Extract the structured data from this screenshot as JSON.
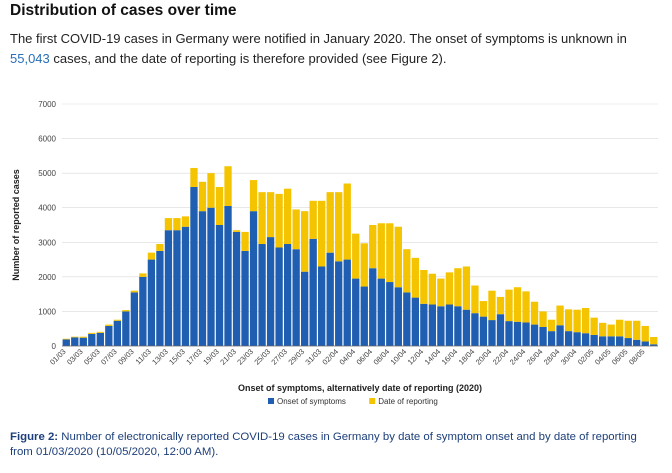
{
  "heading": "Distribution of cases over time",
  "intro": {
    "part1": "The first COVID-19 cases in Germany were notified in January 2020. The onset of symptoms is unknown in ",
    "number": "55,043",
    "part2": " cases, and the date of reporting is therefore provided (see Figure 2)."
  },
  "caption": {
    "lead": "Figure 2:",
    "text": " Number of electronically reported COVID-19 cases in Germany by date of symptom onset and by date of reporting from 01/03/2020 (10/05/2020, 12:00 AM)."
  },
  "chart_data": {
    "type": "bar",
    "stacked": true,
    "xlabel": "Onset of symptoms, alternatively date of reporting (2020)",
    "ylabel": "Number of reported cases",
    "ylim": [
      0,
      7000
    ],
    "yticks": [
      "0",
      "1000",
      "2000",
      "3000",
      "4000",
      "5000",
      "6000",
      "7000"
    ],
    "grid": true,
    "legend_position": "bottom",
    "categories": [
      "01/03",
      "02/03",
      "03/03",
      "04/03",
      "05/03",
      "06/03",
      "07/03",
      "08/03",
      "09/03",
      "10/03",
      "11/03",
      "12/03",
      "13/03",
      "14/03",
      "15/03",
      "16/03",
      "17/03",
      "18/03",
      "19/03",
      "20/03",
      "21/03",
      "22/03",
      "23/03",
      "24/03",
      "25/03",
      "26/03",
      "27/03",
      "28/03",
      "29/03",
      "30/03",
      "31/03",
      "01/04",
      "02/04",
      "03/04",
      "04/04",
      "05/04",
      "06/04",
      "07/04",
      "08/04",
      "09/04",
      "10/04",
      "11/04",
      "12/04",
      "13/04",
      "14/04",
      "15/04",
      "16/04",
      "17/04",
      "18/04",
      "19/04",
      "20/04",
      "21/04",
      "22/04",
      "23/04",
      "24/04",
      "25/04",
      "26/04",
      "27/04",
      "28/04",
      "29/04",
      "30/04",
      "01/05",
      "02/05",
      "03/05",
      "04/05",
      "05/05",
      "06/05",
      "07/05",
      "08/05",
      "09/05"
    ],
    "xtick_labels": [
      "01/03",
      "03/03",
      "05/03",
      "07/03",
      "09/03",
      "11/03",
      "13/03",
      "15/03",
      "17/03",
      "19/03",
      "21/03",
      "23/03",
      "25/03",
      "27/03",
      "29/03",
      "31/03",
      "02/04",
      "04/04",
      "06/04",
      "08/04",
      "10/04",
      "12/04",
      "14/04",
      "16/04",
      "18/04",
      "20/04",
      "22/04",
      "24/04",
      "26/04",
      "28/04",
      "30/04",
      "02/05",
      "04/05",
      "06/05",
      "08/05"
    ],
    "series": [
      {
        "name": "Onset of symptoms",
        "color": "#1f5eb0",
        "values": [
          190,
          250,
          240,
          350,
          380,
          580,
          730,
          1000,
          1550,
          2000,
          2500,
          2750,
          3350,
          3350,
          3450,
          4600,
          3900,
          4000,
          3500,
          4050,
          3300,
          2750,
          3900,
          2950,
          3150,
          2850,
          2950,
          2800,
          2150,
          3100,
          2300,
          2700,
          2450,
          2500,
          1950,
          1720,
          2250,
          1950,
          1850,
          1700,
          1550,
          1400,
          1220,
          1200,
          1150,
          1200,
          1150,
          1050,
          950,
          850,
          750,
          920,
          720,
          700,
          680,
          620,
          550,
          430,
          600,
          430,
          400,
          370,
          320,
          280,
          280,
          280,
          230,
          180,
          130,
          50
        ]
      },
      {
        "name": "Date of reporting",
        "color": "#f5c400",
        "values": [
          20,
          20,
          30,
          30,
          30,
          40,
          30,
          40,
          50,
          100,
          200,
          200,
          350,
          350,
          300,
          550,
          850,
          1000,
          1100,
          1150,
          50,
          550,
          900,
          1500,
          1300,
          1550,
          1600,
          1150,
          1750,
          1100,
          1900,
          1750,
          2000,
          2200,
          1300,
          1250,
          1250,
          1600,
          1700,
          1750,
          1250,
          1150,
          980,
          890,
          800,
          930,
          1100,
          1250,
          800,
          450,
          850,
          500,
          910,
          1000,
          900,
          660,
          450,
          330,
          570,
          630,
          650,
          730,
          500,
          390,
          340,
          480,
          500,
          550,
          450,
          210
        ]
      }
    ]
  }
}
